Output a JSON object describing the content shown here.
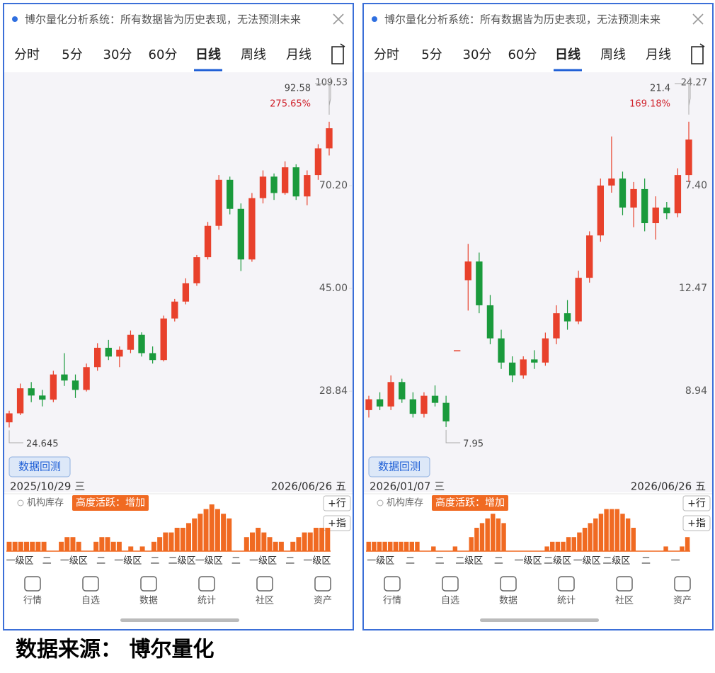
{
  "source": "数据来源： 博尔量化",
  "panels": [
    {
      "banner": "博尔量化分析系统：所有数据皆为历史表现，无法预测未来",
      "tabs": [
        "分时",
        "5分",
        "30分",
        "60分",
        "日线",
        "周线",
        "月线"
      ],
      "active_tab": 4,
      "chart": {
        "type": "candlestick",
        "log_scale": true,
        "up_color": "#e8412c",
        "down_color": "#1a9a3c",
        "ylim": [
          22.03,
          109.53
        ],
        "yticks": [
          {
            "value": 70.2,
            "label": "70.20"
          },
          {
            "value": 45,
            "label": "45.00"
          },
          28.84
        ],
        "high": 92.58,
        "high_change": "275.65%",
        "low": 24.645,
        "candles": [
          [
            25.2,
            26.5,
            24.645,
            26.2
          ],
          [
            26.2,
            29.8,
            26.0,
            29.2
          ],
          [
            29.2,
            30.0,
            27.5,
            28.3
          ],
          [
            28.3,
            29.0,
            27.0,
            27.8
          ],
          [
            27.8,
            31.5,
            27.5,
            31.0
          ],
          [
            31.0,
            34.0,
            29.5,
            30.2
          ],
          [
            30.2,
            31.0,
            28.0,
            29.0
          ],
          [
            29.0,
            32.5,
            28.8,
            32.0
          ],
          [
            32.0,
            35.5,
            31.5,
            34.8
          ],
          [
            34.8,
            36.0,
            33.0,
            33.5
          ],
          [
            33.5,
            35.0,
            32.0,
            34.5
          ],
          [
            34.5,
            37.5,
            34.0,
            36.8
          ],
          [
            36.8,
            37.2,
            33.5,
            34.0
          ],
          [
            34.0,
            35.0,
            32.5,
            33.0
          ],
          [
            33.0,
            40.0,
            32.8,
            39.5
          ],
          [
            39.5,
            43.0,
            39.0,
            42.5
          ],
          [
            42.5,
            47.0,
            42.0,
            46.0
          ],
          [
            46.0,
            52.0,
            45.5,
            51.5
          ],
          [
            51.5,
            60.0,
            51.0,
            59.0
          ],
          [
            59.0,
            73.5,
            58.0,
            72.0
          ],
          [
            72.0,
            73.0,
            62.0,
            63.5
          ],
          [
            63.5,
            65.0,
            48.5,
            51.0
          ],
          [
            51.0,
            68.0,
            50.5,
            66.5
          ],
          [
            66.5,
            75.0,
            65.0,
            73.0
          ],
          [
            73.0,
            74.0,
            66.0,
            68.0
          ],
          [
            68.0,
            78.0,
            67.5,
            76.0
          ],
          [
            76.0,
            77.0,
            66.0,
            67.0
          ],
          [
            67.0,
            75.0,
            64.5,
            73.5
          ],
          [
            73.5,
            84.0,
            72.0,
            82.5
          ],
          [
            82.5,
            92.58,
            80.0,
            90.0
          ]
        ]
      },
      "backtest": "数据回测",
      "start_date": "2025/10/29 三",
      "end_date": "2026/06/26 五",
      "indicator_name": "机构库存",
      "indicator_tag": "高度活跃：增加",
      "buttons": [
        "+行",
        "+指"
      ],
      "activity": {
        "color": "#f06a22",
        "max": 10,
        "values": [
          2,
          2,
          2,
          2,
          2,
          2,
          2,
          0,
          0,
          2,
          3,
          3,
          2,
          0,
          0,
          2,
          3,
          3,
          2,
          2,
          0,
          1,
          0,
          1,
          0,
          2,
          3,
          4,
          4,
          5,
          5,
          6,
          7,
          8,
          9,
          10,
          9,
          8,
          7,
          0,
          0,
          3,
          4,
          5,
          4,
          3,
          2,
          2,
          0,
          2,
          3,
          4,
          4,
          5,
          5,
          5
        ],
        "zones": [
          "一级区",
          "二",
          "一级区",
          "二",
          "一级区",
          "二",
          "二级区",
          "一级区",
          "二",
          "一级区",
          "二",
          "一级区"
        ]
      },
      "nav": [
        "行情",
        "自选",
        "数据",
        "统计",
        "社区",
        "资产"
      ]
    },
    {
      "banner": "博尔量化分析系统：所有数据皆为历史表现，无法预测未来",
      "tabs": [
        "分时",
        "5分",
        "30分",
        "60分",
        "日线",
        "周线",
        "月线"
      ],
      "active_tab": 4,
      "chart": {
        "type": "candlestick",
        "log_scale": true,
        "up_color": "#e8412c",
        "down_color": "#1a9a3c",
        "ylim": [
          7.3,
          24.27
        ],
        "axis_labels": [
          "7.40",
          "12.47",
          "8.94"
        ],
        "high": 21.4,
        "high_change": "169.18%",
        "low": 7.95,
        "candles": [
          [
            8.4,
            8.8,
            8.2,
            8.7
          ],
          [
            8.7,
            8.9,
            8.4,
            8.5
          ],
          [
            8.5,
            9.4,
            8.4,
            9.2
          ],
          [
            9.2,
            9.3,
            8.6,
            8.7
          ],
          [
            8.7,
            8.9,
            8.2,
            8.3
          ],
          [
            8.3,
            8.9,
            8.2,
            8.8
          ],
          [
            8.8,
            9.1,
            8.5,
            8.6
          ],
          [
            8.6,
            8.8,
            7.95,
            8.1
          ],
          [
            10.2,
            10.2,
            10.2,
            10.2
          ],
          [
            12.8,
            14.4,
            11.6,
            13.6
          ],
          [
            13.6,
            14.0,
            11.5,
            11.8
          ],
          [
            11.8,
            12.2,
            10.4,
            10.6
          ],
          [
            10.6,
            10.9,
            9.6,
            9.8
          ],
          [
            9.8,
            10.0,
            9.2,
            9.4
          ],
          [
            9.4,
            10.0,
            9.3,
            9.9
          ],
          [
            9.9,
            10.2,
            9.6,
            9.8
          ],
          [
            9.8,
            10.8,
            9.7,
            10.6
          ],
          [
            10.6,
            11.8,
            10.4,
            11.5
          ],
          [
            11.5,
            12.0,
            10.9,
            11.2
          ],
          [
            11.2,
            13.2,
            11.1,
            12.9
          ],
          [
            12.9,
            15.0,
            12.7,
            14.8
          ],
          [
            14.8,
            17.8,
            14.5,
            17.4
          ],
          [
            17.4,
            20.4,
            17.0,
            17.8
          ],
          [
            17.8,
            18.2,
            15.8,
            16.2
          ],
          [
            16.2,
            17.6,
            15.2,
            17.2
          ],
          [
            17.2,
            17.8,
            15.0,
            15.4
          ],
          [
            15.4,
            16.8,
            14.6,
            16.2
          ],
          [
            16.2,
            16.5,
            15.6,
            15.9
          ],
          [
            15.9,
            18.4,
            15.7,
            18.0
          ],
          [
            18.0,
            21.4,
            17.6,
            20.2
          ]
        ]
      },
      "backtest": "数据回测",
      "start_date": "2026/01/07 三",
      "end_date": "2026/06/26 五",
      "indicator_name": "机构库存",
      "indicator_tag": "高度活跃：增加",
      "buttons": [
        "+行",
        "+指"
      ],
      "activity": {
        "color": "#f06a22",
        "max": 10,
        "values": [
          2,
          2,
          2,
          2,
          2,
          2,
          2,
          2,
          2,
          2,
          0,
          0,
          1,
          0,
          0,
          0,
          1,
          0,
          0,
          3,
          5,
          6,
          7,
          8,
          7,
          6,
          0,
          0,
          0,
          0,
          0,
          0,
          0,
          1,
          2,
          2,
          2,
          3,
          3,
          4,
          5,
          6,
          7,
          8,
          9,
          9,
          9,
          8,
          7,
          5,
          0,
          0,
          0,
          0,
          0,
          1,
          0,
          0,
          1,
          3
        ],
        "zones": [
          "一级区",
          "二",
          "二",
          "二级区",
          "二",
          "一级区",
          "二级区",
          "一级区",
          "二级区",
          "二",
          "一"
        ]
      },
      "nav": [
        "行情",
        "自选",
        "数据",
        "统计",
        "社区",
        "资产"
      ]
    }
  ]
}
